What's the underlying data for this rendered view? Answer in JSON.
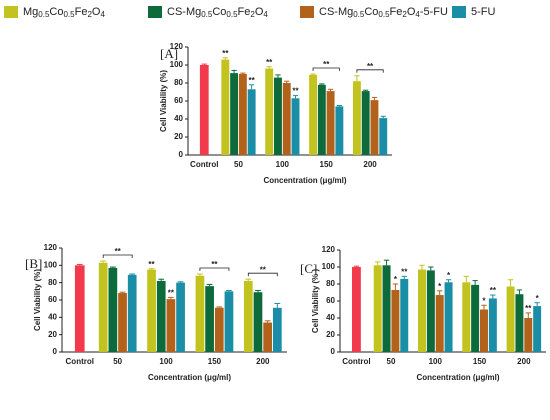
{
  "chart_data": [
    {
      "type": "bar",
      "panel_label": "[A]",
      "ylabel": "Cell Viability (%)",
      "xlabel": "Concentration (μg/ml)",
      "control_label": "Control",
      "control": {
        "value": 100,
        "error": 1,
        "color": "#f23a4c"
      },
      "categories": [
        "50",
        "100",
        "150",
        "200"
      ],
      "ylim": [
        0,
        120
      ],
      "yticks": [
        0,
        20,
        40,
        60,
        80,
        100,
        120
      ],
      "series": [
        {
          "name": "Mg0.5Co0.5Fe2O4",
          "color": "#c3c31f",
          "values": [
            106,
            96,
            89,
            82
          ],
          "errors": [
            2,
            2,
            1,
            6
          ],
          "sig": [
            "**",
            "**",
            null,
            null
          ]
        },
        {
          "name": "CS-Mg0.5Co0.5Fe2O4",
          "color": "#0d6a3b",
          "values": [
            91,
            86,
            78,
            71
          ],
          "errors": [
            3,
            3,
            1,
            1
          ],
          "sig": [
            null,
            null,
            null,
            null
          ]
        },
        {
          "name": "CS-Mg0.5Co0.5Fe2O4-5-FU",
          "color": "#b3621c",
          "values": [
            90,
            80,
            71,
            61
          ],
          "errors": [
            1,
            2,
            2,
            3
          ],
          "sig": [
            null,
            null,
            null,
            null
          ]
        },
        {
          "name": "5-FU",
          "color": "#1a8ea6",
          "values": [
            73,
            63,
            54,
            41
          ],
          "errors": [
            5,
            3,
            1,
            2
          ],
          "sig": [
            "**",
            "**",
            null,
            null
          ]
        }
      ],
      "brackets": [
        {
          "category": 2,
          "label": "**"
        },
        {
          "category": 3,
          "label": "**"
        }
      ]
    },
    {
      "type": "bar",
      "panel_label": "[B]",
      "ylabel": "Cell Viability (%)",
      "xlabel": "Concentration (μg/ml)",
      "control_label": "Control",
      "control": {
        "value": 100,
        "error": 1,
        "color": "#f23a4c"
      },
      "categories": [
        "50",
        "100",
        "150",
        "200"
      ],
      "ylim": [
        0,
        120
      ],
      "yticks": [
        0,
        20,
        40,
        60,
        80,
        100,
        120
      ],
      "series": [
        {
          "color": "#c3c31f",
          "values": [
            103,
            95,
            88,
            82
          ],
          "errors": [
            2,
            1,
            2,
            2
          ],
          "sig": [
            null,
            "**",
            null,
            null
          ]
        },
        {
          "color": "#0d6a3b",
          "values": [
            97,
            82,
            76,
            69
          ],
          "errors": [
            1,
            2,
            2,
            2
          ],
          "sig": [
            null,
            null,
            null,
            null
          ]
        },
        {
          "color": "#b3621c",
          "values": [
            68,
            61,
            51,
            34
          ],
          "errors": [
            1,
            2,
            1,
            2
          ],
          "sig": [
            null,
            "**",
            null,
            null
          ]
        },
        {
          "color": "#1a8ea6",
          "values": [
            89,
            80,
            70,
            51
          ],
          "errors": [
            1,
            1,
            1,
            5
          ],
          "sig": [
            null,
            null,
            null,
            null
          ]
        }
      ],
      "brackets": [
        {
          "category": 0,
          "label": "**"
        },
        {
          "category": 2,
          "label": "**"
        },
        {
          "category": 3,
          "label": "**"
        }
      ]
    },
    {
      "type": "bar",
      "panel_label": "[C]",
      "ylabel": "Cell Viability (% )",
      "xlabel": "Concentration (μg/ml)",
      "control_label": "Control",
      "control": {
        "value": 100,
        "error": 1,
        "color": "#f23a4c"
      },
      "categories": [
        "50",
        "100",
        "150",
        "200"
      ],
      "ylim": [
        0,
        120
      ],
      "yticks": [
        0,
        20,
        40,
        60,
        80,
        100,
        120
      ],
      "series": [
        {
          "color": "#c3c31f",
          "values": [
            102,
            97,
            82,
            77
          ],
          "errors": [
            4,
            5,
            7,
            8
          ],
          "sig": [
            null,
            null,
            null,
            null
          ]
        },
        {
          "color": "#0d6a3b",
          "values": [
            102,
            96,
            79,
            68
          ],
          "errors": [
            6,
            4,
            5,
            5
          ],
          "sig": [
            null,
            null,
            null,
            null
          ]
        },
        {
          "color": "#b3621c",
          "values": [
            73,
            67,
            50,
            40
          ],
          "errors": [
            7,
            5,
            5,
            6
          ],
          "sig": [
            "*",
            "*",
            "*",
            "**"
          ]
        },
        {
          "color": "#1a8ea6",
          "values": [
            86,
            82,
            63,
            54
          ],
          "errors": [
            3,
            3,
            4,
            4
          ],
          "sig": [
            "**",
            "*",
            "**",
            "*"
          ]
        }
      ],
      "brackets": []
    }
  ]
}
